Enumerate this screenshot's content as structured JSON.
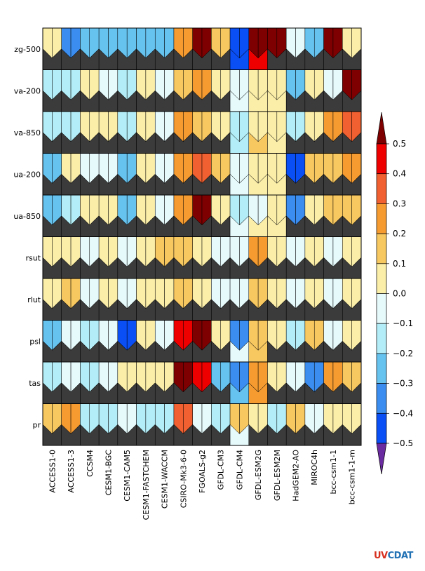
{
  "chart_data": {
    "type": "portrait",
    "rows": [
      "zg-500",
      "va-200",
      "va-850",
      "ua-200",
      "ua-850",
      "rsut",
      "rlut",
      "psl",
      "tas",
      "pr"
    ],
    "columns": [
      "ACCESS1-0",
      "ACCESS1-3",
      "CCSM4",
      "CESM1-BGC",
      "CESM1-CAM5",
      "CESM1-FASTCHEM",
      "CESM1-WACCM",
      "CSIRO-Mk3-6-0",
      "FGOALS-g2",
      "GFDL-CM3",
      "GFDL-CM4",
      "GFDL-ESM2G",
      "GFDL-ESM2M",
      "HadGEM2-AO",
      "MIROC4h",
      "bcc-csm1-1",
      "bcc-csm1-1-m"
    ],
    "top_values": [
      [
        0.05,
        -0.35,
        -0.25,
        -0.25,
        -0.25,
        -0.25,
        -0.25,
        0.25,
        0.55,
        0.15,
        -0.45,
        0.55,
        0.55,
        -0.05,
        -0.25,
        0.55,
        0.05
      ],
      [
        -0.15,
        -0.15,
        0.05,
        -0.05,
        -0.15,
        0.05,
        -0.05,
        0.15,
        0.25,
        0.05,
        -0.05,
        0.05,
        0.05,
        -0.25,
        0.05,
        -0.05,
        0.55
      ],
      [
        -0.15,
        -0.15,
        0.05,
        0.05,
        -0.15,
        0.05,
        -0.05,
        0.25,
        0.15,
        0.05,
        -0.15,
        0.05,
        0.05,
        -0.15,
        0.05,
        0.25,
        0.35
      ],
      [
        -0.25,
        0.05,
        -0.05,
        -0.05,
        -0.25,
        0.05,
        -0.05,
        0.25,
        0.35,
        0.15,
        -0.05,
        0.05,
        0.05,
        -0.45,
        0.15,
        0.15,
        0.25
      ],
      [
        -0.25,
        -0.15,
        0.05,
        0.05,
        -0.25,
        0.05,
        -0.05,
        0.25,
        0.55,
        0.05,
        -0.15,
        -0.05,
        0.05,
        -0.35,
        0.05,
        0.15,
        0.15
      ],
      [
        0.05,
        0.05,
        -0.05,
        0.05,
        -0.05,
        0.05,
        0.15,
        0.15,
        0.05,
        -0.05,
        -0.05,
        0.25,
        0.05,
        -0.05,
        0.05,
        -0.05,
        0.05
      ],
      [
        0.05,
        0.15,
        -0.05,
        0.05,
        -0.05,
        0.05,
        0.05,
        0.15,
        0.05,
        -0.05,
        -0.05,
        0.15,
        0.05,
        -0.05,
        0.05,
        -0.05,
        0.05
      ],
      [
        -0.25,
        -0.05,
        -0.15,
        -0.05,
        -0.45,
        0.05,
        -0.05,
        0.45,
        0.55,
        0.05,
        -0.35,
        0.15,
        0.05,
        -0.15,
        0.15,
        -0.05,
        0.05
      ],
      [
        -0.15,
        -0.05,
        -0.15,
        -0.05,
        0.05,
        0.05,
        0.05,
        0.55,
        0.45,
        -0.25,
        -0.35,
        0.25,
        0.05,
        -0.05,
        -0.35,
        0.25,
        0.15
      ],
      [
        0.15,
        0.25,
        -0.15,
        -0.15,
        -0.05,
        -0.15,
        -0.15,
        0.35,
        -0.05,
        -0.15,
        0.15,
        0.05,
        -0.15,
        0.15,
        -0.05,
        0.05,
        0.05
      ]
    ],
    "bottom_values": [
      [
        null,
        null,
        null,
        null,
        null,
        null,
        null,
        null,
        null,
        null,
        -0.45,
        0.45,
        null,
        null,
        null,
        null,
        null
      ],
      [
        null,
        null,
        null,
        null,
        null,
        null,
        null,
        null,
        null,
        null,
        -0.05,
        0.05,
        0.05,
        null,
        null,
        null,
        null
      ],
      [
        null,
        null,
        null,
        null,
        null,
        null,
        null,
        null,
        null,
        null,
        -0.15,
        0.15,
        0.05,
        null,
        null,
        null,
        null
      ],
      [
        null,
        null,
        null,
        null,
        null,
        null,
        null,
        null,
        null,
        null,
        -0.05,
        0.05,
        0.05,
        null,
        null,
        null,
        null
      ],
      [
        null,
        null,
        null,
        null,
        null,
        null,
        null,
        null,
        null,
        null,
        -0.05,
        0.05,
        0.05,
        null,
        null,
        null,
        null
      ],
      [
        null,
        null,
        null,
        null,
        null,
        null,
        null,
        null,
        null,
        null,
        null,
        null,
        null,
        null,
        null,
        null,
        null
      ],
      [
        null,
        null,
        null,
        null,
        null,
        null,
        null,
        null,
        null,
        null,
        null,
        null,
        null,
        null,
        null,
        null,
        null
      ],
      [
        null,
        null,
        null,
        null,
        null,
        null,
        null,
        null,
        null,
        null,
        -0.05,
        0.15,
        null,
        null,
        null,
        null,
        null
      ],
      [
        null,
        null,
        null,
        null,
        null,
        null,
        null,
        null,
        null,
        null,
        -0.25,
        0.25,
        null,
        null,
        null,
        null,
        null
      ],
      [
        null,
        null,
        null,
        null,
        null,
        null,
        null,
        null,
        null,
        null,
        -0.05,
        null,
        null,
        null,
        null,
        null,
        null
      ]
    ],
    "colorbar": {
      "ticks": [
        "0.5",
        "0.4",
        "0.3",
        "0.2",
        "0.1",
        "0.0",
        "−0.1",
        "−0.2",
        "−0.3",
        "−0.4",
        "−0.5"
      ],
      "colors": [
        "#7f0000",
        "#ee0000",
        "#f06030",
        "#f59b30",
        "#f8c860",
        "#fbeea8",
        "#e6fafc",
        "#b3eef8",
        "#66c3f0",
        "#3b8ef0",
        "#0a4ff5",
        "#6a2aa0"
      ],
      "range": [
        -0.5,
        0.5
      ]
    },
    "missing_color": "#3b3b3b"
  },
  "logo": {
    "uv": "UV",
    "cdat": "CDAT"
  }
}
